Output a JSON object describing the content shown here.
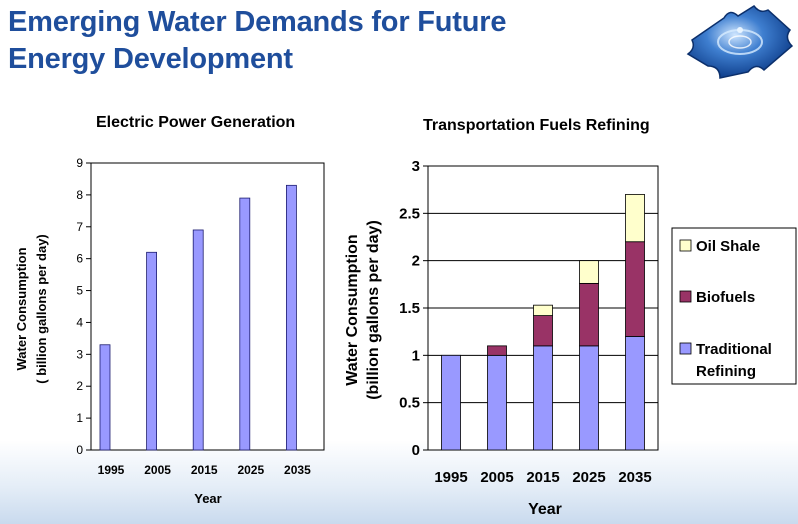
{
  "slide": {
    "title_line1": "Emerging Water Demands for Future",
    "title_line2": "Energy Development",
    "logo_icon": "water-puzzle-logo-icon"
  },
  "colors": {
    "title": "#1f4e9c",
    "bar_traditional": "#9999ff",
    "bar_biofuels": "#993366",
    "bar_oil_shale": "#ffffcc"
  },
  "chart_data": [
    {
      "type": "bar",
      "title": "Electric Power Generation",
      "xlabel": "Year",
      "ylabel_line1": "Water Consumption",
      "ylabel_line2": "( billion gallons per day)",
      "categories": [
        "1995",
        "2005",
        "2015",
        "2025",
        "2035"
      ],
      "values": [
        3.3,
        6.2,
        6.9,
        7.9,
        8.3
      ],
      "ylim": [
        0,
        9
      ],
      "yticks": [
        "0",
        "1",
        "2",
        "3",
        "4",
        "5",
        "6",
        "7",
        "8",
        "9"
      ],
      "grid": false
    },
    {
      "type": "bar",
      "stacked": true,
      "title": "Transportation Fuels Refining",
      "xlabel": "Year",
      "ylabel_line1": "Water Consumption",
      "ylabel_line2": "(billion gallons per day)",
      "categories": [
        "1995",
        "2005",
        "2015",
        "2025",
        "2035"
      ],
      "series": [
        {
          "name": "Traditional Refining",
          "values": [
            1.0,
            1.0,
            1.1,
            1.1,
            1.2
          ]
        },
        {
          "name": "Biofuels",
          "values": [
            0.0,
            0.1,
            0.32,
            0.66,
            1.0
          ]
        },
        {
          "name": "Oil Shale",
          "values": [
            0.0,
            0.0,
            0.11,
            0.24,
            0.5
          ]
        }
      ],
      "legend_entries": [
        {
          "line1": "Oil Shale",
          "line2": ""
        },
        {
          "line1": "Biofuels",
          "line2": ""
        },
        {
          "line1": "Traditional",
          "line2": "Refining"
        }
      ],
      "legend_placement": "right",
      "ylim": [
        0,
        3
      ],
      "yticks": [
        "0",
        "0.5",
        "1",
        "1.5",
        "2",
        "2.5",
        "3"
      ],
      "grid": true
    }
  ]
}
